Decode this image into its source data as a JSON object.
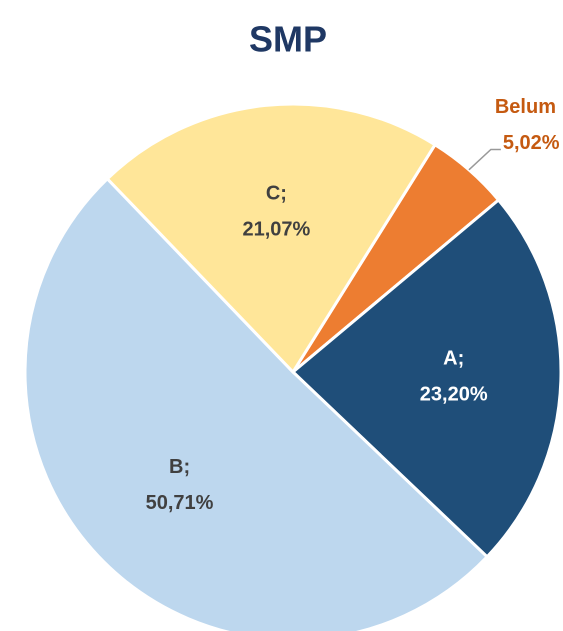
{
  "chart_data": {
    "type": "pie",
    "title": "SMP",
    "categories": [
      "Belum",
      "A;",
      "B;",
      "C;"
    ],
    "values": [
      5.02,
      23.2,
      50.71,
      21.07
    ],
    "value_labels": [
      "5,02%",
      "23,20%",
      "50,71%",
      "21,07%"
    ],
    "colors": [
      "#ED7D31",
      "#1F4E79",
      "#BDD7EE",
      "#FFE699"
    ],
    "label_colors": [
      "#C55A11",
      "#FFFFFF",
      "#404040",
      "#404040"
    ],
    "start_angle": 32
  }
}
